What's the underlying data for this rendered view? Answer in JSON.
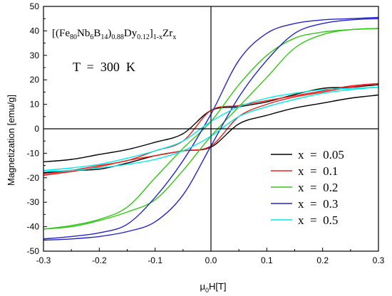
{
  "chart_data": {
    "type": "line",
    "xlabel": "μ",
    "xlabel_sub": "0",
    "xlabel_rest": "H[T]",
    "ylabel": "Magnetization [emu/g]",
    "xlim": [
      -0.3,
      0.3
    ],
    "ylim": [
      -50,
      50
    ],
    "x_ticks": [
      -0.3,
      -0.2,
      -0.1,
      0.0,
      0.1,
      0.2,
      0.3
    ],
    "x_tick_labels": [
      "-0.3",
      "-0.2",
      "-0.1",
      "0.0",
      "0.1",
      "0.2",
      "0.3"
    ],
    "y_ticks": [
      -50,
      -40,
      -30,
      -20,
      -10,
      0,
      10,
      20,
      30,
      40,
      50
    ],
    "y_tick_labels": [
      "-50",
      "-40",
      "-30",
      "-20",
      "-10",
      "0",
      "10",
      "20",
      "30",
      "40",
      "50"
    ],
    "formula": {
      "open": "[(Fe",
      "s1": "80",
      "t2": "Nb",
      "s2": "6",
      "t3": "B",
      "s3": "14",
      "t4": ")",
      "s4": "0.88",
      "t5": "Dy",
      "s5": "0.12",
      "t6": "]",
      "s6": "1-x",
      "t7": "Zr",
      "s7": "x"
    },
    "temperature_label": "T  =  300  K",
    "legend_position": "bottom-right",
    "series": [
      {
        "name": "x  =  0.05",
        "color": "#000000",
        "upper_branch": {
          "x": [
            -0.3,
            -0.25,
            -0.2,
            -0.15,
            -0.1,
            -0.05,
            0.0,
            0.05,
            0.1,
            0.15,
            0.2,
            0.25,
            0.3
          ],
          "y": [
            -18,
            -17,
            -16.5,
            -14,
            -11,
            -9,
            -7.5,
            2,
            5.5,
            8.5,
            10.5,
            12.5,
            13.8
          ]
        },
        "lower_branch": {
          "x": [
            -0.3,
            -0.25,
            -0.2,
            -0.15,
            -0.1,
            -0.05,
            0.0,
            0.05,
            0.1,
            0.15,
            0.2,
            0.25,
            0.3
          ],
          "y": [
            -13.5,
            -12.5,
            -10.5,
            -8.5,
            -5.5,
            -2,
            7.5,
            9,
            11,
            14,
            16.5,
            17,
            18
          ]
        }
      },
      {
        "name": "x  =  0.1",
        "color": "#e8201e",
        "upper_branch": {
          "x": [
            -0.3,
            -0.25,
            -0.2,
            -0.15,
            -0.1,
            -0.05,
            0.0,
            0.05,
            0.1,
            0.15,
            0.2,
            0.25,
            0.3
          ],
          "y": [
            -19,
            -17.5,
            -15.5,
            -13,
            -11,
            -9,
            -7,
            5,
            10,
            13,
            15,
            17,
            18.5
          ]
        },
        "lower_branch": {
          "x": [
            -0.3,
            -0.25,
            -0.2,
            -0.15,
            -0.1,
            -0.05,
            0.0,
            0.05,
            0.1,
            0.15,
            0.2,
            0.25,
            0.3
          ],
          "y": [
            -18.5,
            -17,
            -15,
            -13,
            -9,
            -5,
            7.5,
            9.5,
            11.5,
            13.5,
            15.5,
            17.5,
            18.5
          ]
        }
      },
      {
        "name": "x  =  0.2",
        "color": "#34c51a",
        "upper_branch": {
          "x": [
            -0.3,
            -0.25,
            -0.2,
            -0.15,
            -0.1,
            -0.05,
            0.0,
            0.05,
            0.1,
            0.15,
            0.2,
            0.25,
            0.3
          ],
          "y": [
            -41,
            -39.5,
            -37,
            -32,
            -20,
            -8,
            3,
            18,
            30,
            37,
            39.5,
            40.5,
            41
          ]
        },
        "lower_branch": {
          "x": [
            -0.3,
            -0.25,
            -0.2,
            -0.15,
            -0.1,
            -0.05,
            0.0,
            0.05,
            0.1,
            0.15,
            0.2,
            0.25,
            0.3
          ],
          "y": [
            -41,
            -40,
            -37.5,
            -34,
            -29,
            -17,
            -3,
            9,
            21,
            33,
            38.5,
            40.5,
            41
          ]
        }
      },
      {
        "name": "x  =  0.3",
        "color": "#2424c8",
        "upper_branch": {
          "x": [
            -0.3,
            -0.25,
            -0.2,
            -0.15,
            -0.1,
            -0.05,
            0.0,
            0.05,
            0.1,
            0.15,
            0.2,
            0.25,
            0.3
          ],
          "y": [
            -45,
            -44,
            -42.5,
            -39,
            -28,
            -13,
            6,
            28,
            39,
            43,
            44.5,
            45,
            45.5
          ]
        },
        "lower_branch": {
          "x": [
            -0.3,
            -0.25,
            -0.2,
            -0.15,
            -0.1,
            -0.05,
            0.0,
            0.05,
            0.1,
            0.15,
            0.2,
            0.25,
            0.3
          ],
          "y": [
            -45.5,
            -45,
            -44,
            -42,
            -38,
            -27,
            -7,
            13,
            28,
            39,
            43,
            44.5,
            45
          ]
        }
      },
      {
        "name": "x  =  0.5",
        "color": "#00e8e8",
        "upper_branch": {
          "x": [
            -0.3,
            -0.25,
            -0.2,
            -0.15,
            -0.1,
            -0.05,
            0.0,
            0.05,
            0.1,
            0.15,
            0.2,
            0.25,
            0.3
          ],
          "y": [
            -17.5,
            -17,
            -16,
            -14.5,
            -12.5,
            -9,
            -3,
            5,
            9,
            12,
            14.5,
            16,
            17
          ]
        },
        "lower_branch": {
          "x": [
            -0.3,
            -0.25,
            -0.2,
            -0.15,
            -0.1,
            -0.05,
            0.0,
            0.05,
            0.1,
            0.15,
            0.2,
            0.25,
            0.3
          ],
          "y": [
            -17,
            -16,
            -14.5,
            -12,
            -9,
            -5,
            3,
            9,
            12.5,
            14.5,
            16,
            16.5,
            17
          ]
        }
      }
    ]
  }
}
